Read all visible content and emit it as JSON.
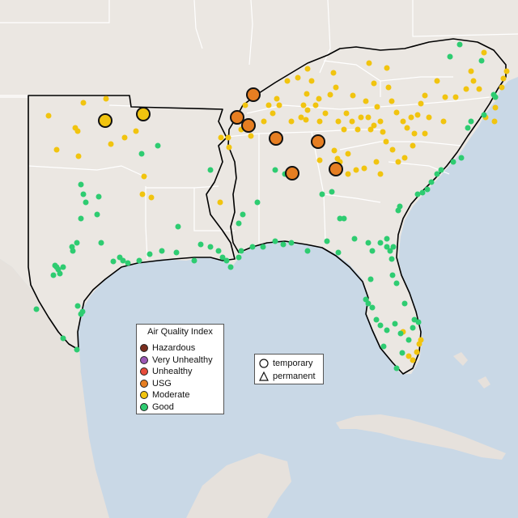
{
  "legend": {
    "title": "Air Quality Index",
    "items": [
      {
        "label": "Hazardous",
        "color": "#7a2e1e"
      },
      {
        "label": "Very Unhealthy",
        "color": "#9b59b6"
      },
      {
        "label": "Unhealthy",
        "color": "#e74c3c"
      },
      {
        "label": "USG",
        "color": "#e67e22"
      },
      {
        "label": "Moderate",
        "color": "#f1c40f"
      },
      {
        "label": "Good",
        "color": "#2ecc71"
      }
    ]
  },
  "shape_legend": {
    "items": [
      {
        "label": "temporary",
        "icon": "circle-icon"
      },
      {
        "label": "permanent",
        "icon": "triangle-icon"
      }
    ]
  },
  "colors": {
    "water": "#c9d8e6",
    "land": "#ebe7e2",
    "border": "#ffffff",
    "highlight_outline": "#000000"
  }
}
